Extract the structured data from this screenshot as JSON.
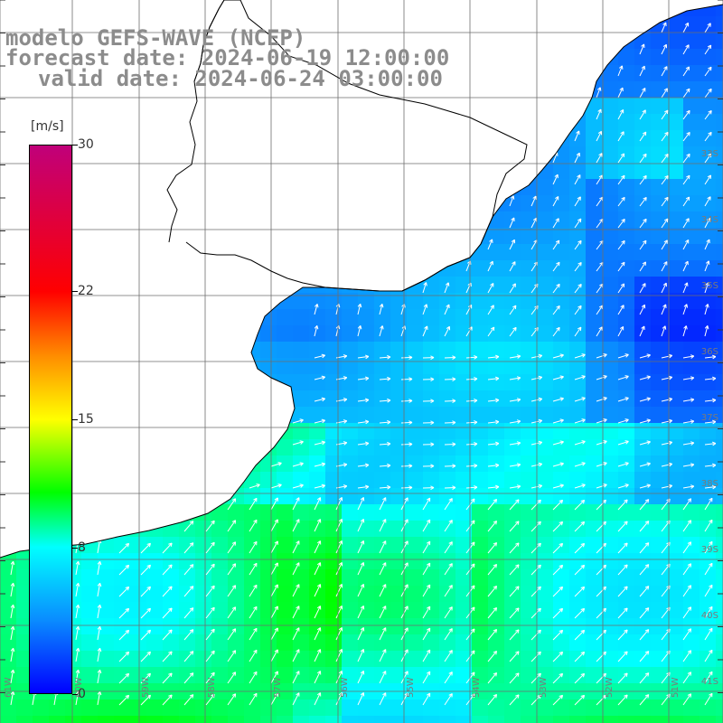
{
  "title": {
    "line1": "modelo GEFS-WAVE (NCEP)",
    "line2": "forecast date: 2024-06-19 12:00:00",
    "line3": "valid date: 2024-06-24 03:00:00"
  },
  "colorbar": {
    "unit": "[m/s]",
    "ticks": [
      "30",
      "22",
      "15",
      "8",
      "0"
    ],
    "tick_values": [
      30,
      22,
      15,
      8,
      0
    ],
    "min": 0,
    "max": 30,
    "stops": [
      {
        "v": 0,
        "color": "#0000ff"
      },
      {
        "v": 4,
        "color": "#0a8cff"
      },
      {
        "v": 8,
        "color": "#00ffff"
      },
      {
        "v": 11,
        "color": "#00ff00"
      },
      {
        "v": 15,
        "color": "#ffff00"
      },
      {
        "v": 18.5,
        "color": "#ff8c00"
      },
      {
        "v": 22,
        "color": "#ff0000"
      },
      {
        "v": 30,
        "color": "#c0007a"
      }
    ]
  },
  "lat_labels": [
    "33S",
    "34S",
    "35S",
    "36S",
    "37S",
    "38S",
    "39S",
    "40S",
    "41S"
  ],
  "lon_labels": [
    "61W",
    "60W",
    "59W",
    "58W",
    "57W",
    "56W",
    "55W",
    "54W",
    "53W",
    "52W",
    "51W"
  ],
  "colors": {
    "land": "#ffffff",
    "coastline": "#000000",
    "grid": "#6e6e6e",
    "arrow": "#ffffff",
    "title": "#8c8c8c"
  }
}
